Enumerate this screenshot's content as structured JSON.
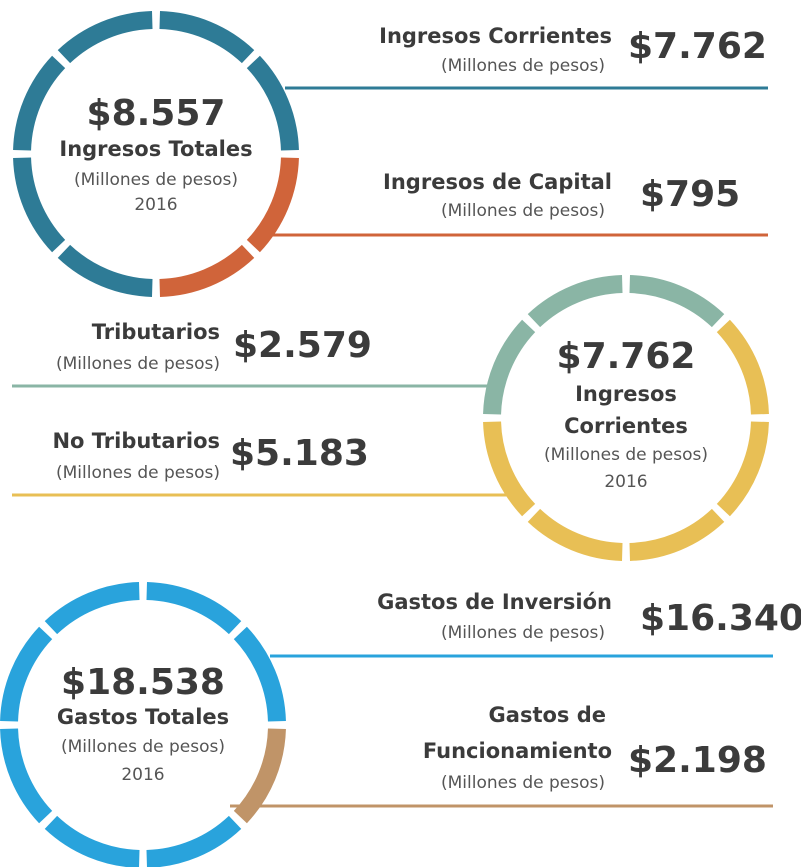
{
  "sections": [
    {
      "center": {
        "amount": "$8.557",
        "title": [
          "Ingresos Totales"
        ],
        "unit": "(Millones de pesos)",
        "year": "2016"
      },
      "items": [
        {
          "label": [
            "Ingresos Corrientes"
          ],
          "unit": "(Millones de pesos)",
          "amount": "$7.762"
        },
        {
          "label": [
            "Ingresos de Capital"
          ],
          "unit": "(Millones de pesos)",
          "amount": "$795"
        }
      ]
    },
    {
      "center": {
        "amount": "$7.762",
        "title": [
          "Ingresos",
          "Corrientes"
        ],
        "unit": "(Millones de pesos)",
        "year": "2016"
      },
      "items": [
        {
          "label": [
            "Tributarios"
          ],
          "unit": "(Millones de pesos)",
          "amount": "$2.579"
        },
        {
          "label": [
            "No Tributarios"
          ],
          "unit": "(Millones de pesos)",
          "amount": "$5.183"
        }
      ]
    },
    {
      "center": {
        "amount": "$18.538",
        "title": [
          "Gastos Totales"
        ],
        "unit": "(Millones de pesos)",
        "year": "2016"
      },
      "items": [
        {
          "label": [
            "Gastos de Inversión"
          ],
          "unit": "(Millones de pesos)",
          "amount": "$16.340"
        },
        {
          "label": [
            "Gastos de",
            "Funcionamiento"
          ],
          "unit": "(Millones de pesos)",
          "amount": "$2.198"
        }
      ]
    }
  ]
}
